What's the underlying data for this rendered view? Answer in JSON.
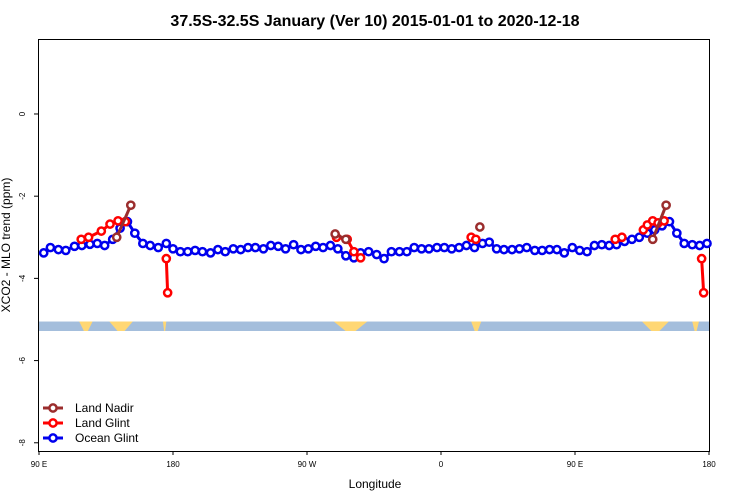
{
  "chart_data": {
    "type": "line",
    "title": "37.5S-32.5S January (Ver 10)   2015-01-01 to 2020-12-18",
    "xlabel": "Longitude",
    "ylabel": "XCO2 - MLO trend (ppm)",
    "xlim": [
      0,
      1
    ],
    "ylim": [
      -8.2,
      1.8
    ],
    "x_tick_labels": [
      "90 E",
      "180",
      "90 W",
      "0",
      "90 E",
      "180"
    ],
    "x_tick_positions": [
      0.0,
      0.2,
      0.4,
      0.6,
      0.8,
      1.0
    ],
    "y_ticks": [
      0,
      -2,
      -4,
      -6,
      -8
    ],
    "y_tick_labels": [
      "0",
      "-2",
      "-4",
      "-6",
      "-8"
    ],
    "legend": {
      "position": "bottom-left",
      "entries": [
        "Land Nadir",
        "Land Glint",
        "Ocean Glint"
      ]
    },
    "land_strip": {
      "y_range": [
        -5.05,
        -5.28
      ],
      "ocean_color": "#a4bedc",
      "land_color": "#ffd774"
    },
    "series": [
      {
        "name": "Land Nadir",
        "color": "#9b2d2d",
        "segments": [
          {
            "x": [
              0.116,
              0.137
            ],
            "y": [
              -3.0,
              -2.22
            ]
          },
          {
            "x": [
              0.442,
              0.458
            ],
            "y": [
              -2.92,
              -3.05
            ]
          },
          {
            "x": [
              0.658
            ],
            "y": [
              -2.75
            ]
          },
          {
            "x": [
              0.916,
              0.936
            ],
            "y": [
              -3.05,
              -2.22
            ]
          }
        ]
      },
      {
        "name": "Land Glint",
        "color": "#ff0000",
        "segments": [
          {
            "x": [
              0.063,
              0.074,
              0.093,
              0.106,
              0.118,
              0.129
            ],
            "y": [
              -3.05,
              -3.0,
              -2.85,
              -2.68,
              -2.6,
              -2.62
            ]
          },
          {
            "x": [
              0.19,
              0.192
            ],
            "y": [
              -3.52,
              -4.35
            ]
          },
          {
            "x": [
              0.444,
              0.46,
              0.47,
              0.48
            ],
            "y": [
              -3.0,
              -3.05,
              -3.35,
              -3.5
            ]
          },
          {
            "x": [
              0.645,
              0.652
            ],
            "y": [
              -3.0,
              -3.05
            ]
          },
          {
            "x": [
              0.86,
              0.87
            ],
            "y": [
              -3.05,
              -3.0
            ]
          },
          {
            "x": [
              0.902,
              0.908,
              0.916,
              0.924,
              0.933
            ],
            "y": [
              -2.82,
              -2.7,
              -2.6,
              -2.65,
              -2.6
            ]
          },
          {
            "x": [
              0.989,
              0.992
            ],
            "y": [
              -3.52,
              -4.35
            ]
          }
        ]
      },
      {
        "name": "Ocean Glint",
        "color": "#0000ee",
        "segments": [
          {
            "x": [
              0.007,
              0.017,
              0.029,
              0.04,
              0.053,
              0.064,
              0.076,
              0.087,
              0.098,
              0.11,
              0.121,
              0.132,
              0.143,
              0.155,
              0.166,
              0.178,
              0.19,
              0.2,
              0.211,
              0.222,
              0.233,
              0.244,
              0.256,
              0.267,
              0.278,
              0.29,
              0.301,
              0.312,
              0.323,
              0.335,
              0.346,
              0.357,
              0.368,
              0.38,
              0.391,
              0.402,
              0.413,
              0.424,
              0.435,
              0.446,
              0.458,
              0.47,
              0.48,
              0.492,
              0.504,
              0.515,
              0.526,
              0.538,
              0.549,
              0.56,
              0.571,
              0.582,
              0.594,
              0.605,
              0.616,
              0.627,
              0.638,
              0.65,
              0.662,
              0.672,
              0.683,
              0.694,
              0.706,
              0.717,
              0.728,
              0.74,
              0.751,
              0.762,
              0.773,
              0.784,
              0.796,
              0.807,
              0.818,
              0.829,
              0.84,
              0.851,
              0.862,
              0.874,
              0.885,
              0.896,
              0.908,
              0.919,
              0.93,
              0.941,
              0.952,
              0.963,
              0.975,
              0.986,
              0.997
            ],
            "y": [
              -3.38,
              -3.25,
              -3.3,
              -3.32,
              -3.22,
              -3.2,
              -3.17,
              -3.15,
              -3.2,
              -3.05,
              -2.78,
              -2.62,
              -2.9,
              -3.15,
              -3.2,
              -3.25,
              -3.15,
              -3.28,
              -3.35,
              -3.35,
              -3.32,
              -3.35,
              -3.38,
              -3.3,
              -3.35,
              -3.28,
              -3.3,
              -3.25,
              -3.25,
              -3.28,
              -3.2,
              -3.22,
              -3.28,
              -3.18,
              -3.3,
              -3.28,
              -3.22,
              -3.25,
              -3.2,
              -3.28,
              -3.45,
              -3.5,
              -3.38,
              -3.35,
              -3.42,
              -3.52,
              -3.35,
              -3.35,
              -3.35,
              -3.25,
              -3.28,
              -3.28,
              -3.25,
              -3.25,
              -3.28,
              -3.25,
              -3.2,
              -3.25,
              -3.15,
              -3.12,
              -3.28,
              -3.3,
              -3.3,
              -3.28,
              -3.25,
              -3.32,
              -3.32,
              -3.3,
              -3.3,
              -3.38,
              -3.25,
              -3.32,
              -3.35,
              -3.2,
              -3.18,
              -3.2,
              -3.18,
              -3.1,
              -3.05,
              -3.0,
              -2.9,
              -2.82,
              -2.72,
              -2.62,
              -2.9,
              -3.15,
              -3.18,
              -3.2,
              -3.15
            ]
          }
        ]
      }
    ]
  }
}
